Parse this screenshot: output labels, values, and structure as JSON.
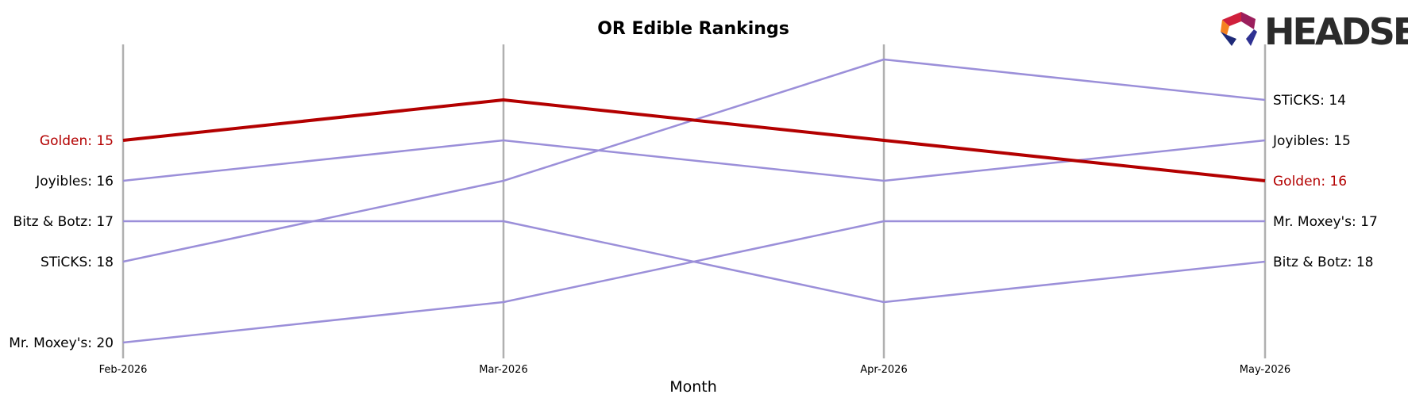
{
  "chart_data": {
    "type": "line",
    "title": "OR Edible Rankings",
    "xlabel": "Month",
    "ylabel": "",
    "categories": [
      "Feb-2026",
      "Mar-2026",
      "Apr-2026",
      "May-2026"
    ],
    "y_inverted": true,
    "ylim": [
      12,
      20.5
    ],
    "grid": false,
    "series": [
      {
        "name": "Golden",
        "values": [
          15,
          14,
          15,
          16
        ],
        "color": "#b30000",
        "highlight": true
      },
      {
        "name": "Joyibles",
        "values": [
          16,
          15,
          16,
          15
        ],
        "color": "#9b8fd9",
        "highlight": false
      },
      {
        "name": "Bitz & Botz",
        "values": [
          17,
          17,
          19,
          18
        ],
        "color": "#9b8fd9",
        "highlight": false
      },
      {
        "name": "STiCKS",
        "values": [
          18,
          16,
          13,
          14
        ],
        "color": "#9b8fd9",
        "highlight": false
      },
      {
        "name": "Mr. Moxey's",
        "values": [
          20,
          19,
          17,
          17
        ],
        "color": "#9b8fd9",
        "highlight": false
      }
    ],
    "axis_line_color": "#b0b0b0"
  },
  "logo": {
    "text": "HEADSET"
  }
}
